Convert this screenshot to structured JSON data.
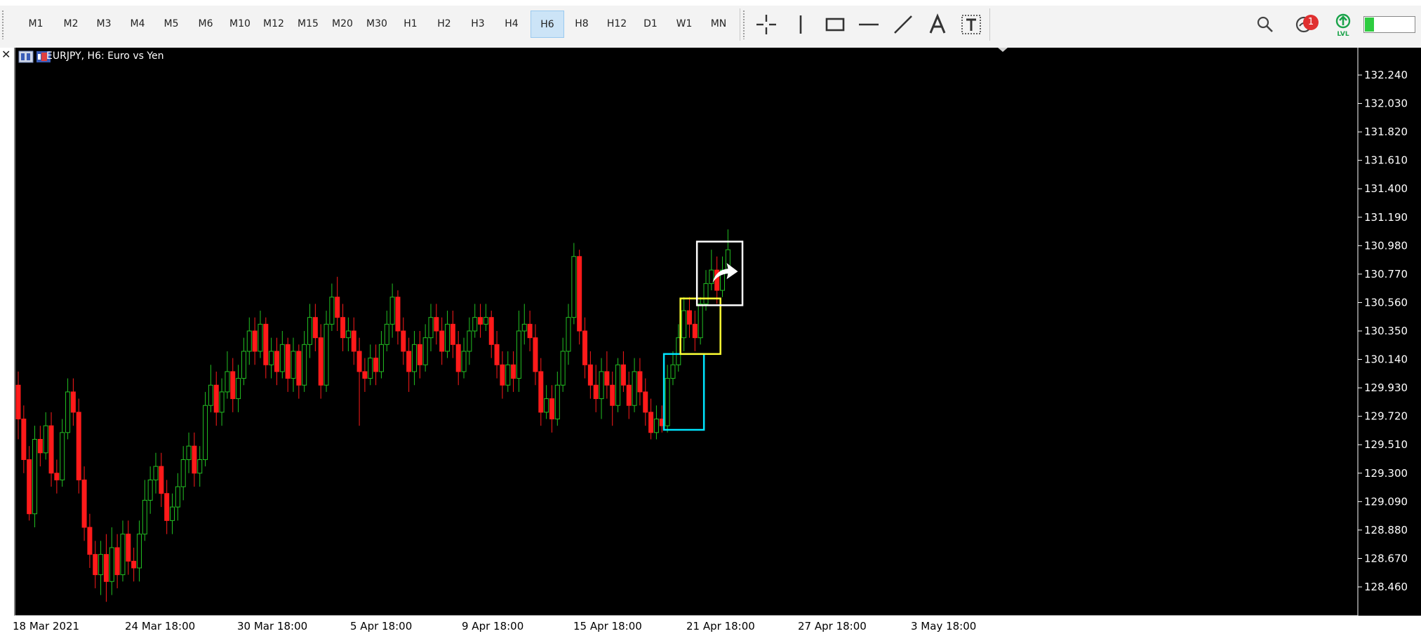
{
  "toolbar": {
    "timeframes": [
      {
        "label": "M1",
        "active": false
      },
      {
        "label": "M2",
        "active": false
      },
      {
        "label": "M3",
        "active": false
      },
      {
        "label": "M4",
        "active": false
      },
      {
        "label": "M5",
        "active": false
      },
      {
        "label": "M6",
        "active": false
      },
      {
        "label": "M10",
        "active": false
      },
      {
        "label": "M12",
        "active": false
      },
      {
        "label": "M15",
        "active": false
      },
      {
        "label": "M20",
        "active": false
      },
      {
        "label": "M30",
        "active": false
      },
      {
        "label": "H1",
        "active": false
      },
      {
        "label": "H2",
        "active": false
      },
      {
        "label": "H3",
        "active": false
      },
      {
        "label": "H4",
        "active": false
      },
      {
        "label": "H6",
        "active": true
      },
      {
        "label": "H8",
        "active": false
      },
      {
        "label": "H12",
        "active": false
      },
      {
        "label": "D1",
        "active": false
      },
      {
        "label": "W1",
        "active": false
      },
      {
        "label": "MN",
        "active": false
      }
    ],
    "tools": [
      "crosshair-icon",
      "vertical-line-icon",
      "rectangle-icon",
      "horizontal-line-icon",
      "trendline-icon",
      "text-icon",
      "text-label-icon"
    ],
    "notification_count": "1",
    "level_label": "LVL",
    "level_fraction": 0.18,
    "colors": {
      "active_bg": "#cce4f7",
      "badge": "#e03030",
      "level": "#2ecc40",
      "signal_green": "#1aa34a"
    }
  },
  "chart_data": {
    "type": "candlestick",
    "title": "EURJPY, H6:  Euro vs Yen",
    "ylim": [
      128.3,
      132.4
    ],
    "y_ticks": [
      "132.240",
      "132.030",
      "131.820",
      "131.610",
      "131.400",
      "131.190",
      "130.980",
      "130.770",
      "130.560",
      "130.350",
      "130.140",
      "129.930",
      "129.720",
      "129.510",
      "129.300",
      "129.090",
      "128.880",
      "128.670",
      "128.460"
    ],
    "x_labels": [
      "18 Mar 2021",
      "24 Mar 18:00",
      "30 Mar 18:00",
      "5 Apr 18:00",
      "9 Apr 18:00",
      "15 Apr 18:00",
      "21 Apr 18:00",
      "27 Apr 18:00",
      "3 May 18:00"
    ],
    "colors": {
      "up": "#22c022",
      "down": "#ff1a1a",
      "grid_text": "#ffffff",
      "boxes": [
        "#00e5ff",
        "#ffff33",
        "#ffffff"
      ]
    },
    "candles": [
      [
        129.95,
        129.7,
        130.05,
        129.55
      ],
      [
        129.7,
        129.4,
        129.8,
        129.3
      ],
      [
        129.4,
        129.0,
        129.5,
        128.95
      ],
      [
        129.0,
        129.55,
        129.65,
        128.9
      ],
      [
        129.55,
        129.45,
        129.65,
        129.35
      ],
      [
        129.45,
        129.65,
        129.75,
        129.4
      ],
      [
        129.65,
        129.3,
        129.75,
        129.2
      ],
      [
        129.3,
        129.25,
        129.4,
        129.15
      ],
      [
        129.25,
        129.6,
        129.7,
        129.2
      ],
      [
        129.6,
        129.9,
        130.0,
        129.55
      ],
      [
        129.9,
        129.75,
        130.0,
        129.65
      ],
      [
        129.75,
        129.25,
        129.85,
        129.15
      ],
      [
        129.25,
        128.9,
        129.35,
        128.8
      ],
      [
        128.9,
        128.7,
        129.0,
        128.6
      ],
      [
        128.7,
        128.55,
        128.8,
        128.45
      ],
      [
        128.55,
        128.7,
        128.8,
        128.4
      ],
      [
        128.7,
        128.5,
        128.85,
        128.35
      ],
      [
        128.5,
        128.75,
        128.9,
        128.4
      ],
      [
        128.75,
        128.55,
        128.85,
        128.45
      ],
      [
        128.55,
        128.85,
        128.95,
        128.5
      ],
      [
        128.85,
        128.65,
        128.95,
        128.55
      ],
      [
        128.65,
        128.6,
        128.75,
        128.5
      ],
      [
        128.6,
        128.85,
        128.95,
        128.5
      ],
      [
        128.85,
        129.1,
        129.25,
        128.8
      ],
      [
        129.1,
        129.25,
        129.35,
        129.0
      ],
      [
        129.25,
        129.35,
        129.45,
        129.15
      ],
      [
        129.35,
        129.15,
        129.45,
        129.05
      ],
      [
        129.15,
        128.95,
        129.25,
        128.85
      ],
      [
        128.95,
        129.05,
        129.15,
        128.85
      ],
      [
        129.05,
        129.2,
        129.3,
        128.95
      ],
      [
        129.2,
        129.4,
        129.5,
        129.1
      ],
      [
        129.4,
        129.5,
        129.6,
        129.3
      ],
      [
        129.5,
        129.3,
        129.6,
        129.2
      ],
      [
        129.3,
        129.4,
        129.5,
        129.2
      ],
      [
        129.4,
        129.8,
        129.9,
        129.35
      ],
      [
        129.8,
        129.95,
        130.1,
        129.75
      ],
      [
        129.95,
        129.75,
        130.05,
        129.65
      ],
      [
        129.75,
        129.9,
        130.0,
        129.65
      ],
      [
        129.9,
        130.05,
        130.2,
        129.85
      ],
      [
        130.05,
        129.85,
        130.15,
        129.75
      ],
      [
        129.85,
        130.0,
        130.1,
        129.75
      ],
      [
        130.0,
        130.2,
        130.3,
        129.95
      ],
      [
        130.2,
        130.35,
        130.45,
        130.1
      ],
      [
        130.35,
        130.2,
        130.45,
        130.1
      ],
      [
        130.2,
        130.4,
        130.5,
        130.15
      ],
      [
        130.4,
        130.1,
        130.45,
        130.0
      ],
      [
        130.1,
        130.2,
        130.3,
        130.0
      ],
      [
        130.2,
        130.05,
        130.3,
        129.95
      ],
      [
        130.05,
        130.25,
        130.35,
        130.0
      ],
      [
        130.25,
        130.0,
        130.3,
        129.9
      ],
      [
        130.0,
        130.2,
        130.3,
        129.9
      ],
      [
        130.2,
        129.95,
        130.25,
        129.85
      ],
      [
        129.95,
        130.25,
        130.35,
        129.9
      ],
      [
        130.25,
        130.45,
        130.55,
        130.15
      ],
      [
        130.45,
        130.3,
        130.55,
        130.2
      ],
      [
        130.3,
        129.95,
        130.4,
        129.85
      ],
      [
        129.95,
        130.4,
        130.5,
        129.9
      ],
      [
        130.4,
        130.6,
        130.7,
        130.35
      ],
      [
        130.6,
        130.45,
        130.75,
        130.35
      ],
      [
        130.45,
        130.3,
        130.55,
        130.2
      ],
      [
        130.3,
        130.35,
        130.45,
        130.2
      ],
      [
        130.35,
        130.2,
        130.45,
        130.1
      ],
      [
        130.2,
        130.05,
        130.3,
        129.65
      ],
      [
        130.05,
        130.0,
        130.15,
        129.9
      ],
      [
        130.0,
        130.15,
        130.25,
        129.95
      ],
      [
        130.15,
        130.05,
        130.25,
        129.95
      ],
      [
        130.05,
        130.25,
        130.35,
        130.0
      ],
      [
        130.25,
        130.4,
        130.5,
        130.2
      ],
      [
        130.4,
        130.6,
        130.7,
        130.3
      ],
      [
        130.6,
        130.35,
        130.65,
        130.25
      ],
      [
        130.35,
        130.2,
        130.45,
        130.1
      ],
      [
        130.2,
        130.05,
        130.3,
        129.9
      ],
      [
        130.05,
        130.25,
        130.35,
        129.95
      ],
      [
        130.25,
        130.1,
        130.35,
        130.0
      ],
      [
        130.1,
        130.3,
        130.4,
        130.05
      ],
      [
        130.3,
        130.45,
        130.55,
        130.2
      ],
      [
        130.45,
        130.35,
        130.55,
        130.25
      ],
      [
        130.35,
        130.2,
        130.45,
        130.1
      ],
      [
        130.2,
        130.4,
        130.5,
        130.15
      ],
      [
        130.4,
        130.25,
        130.5,
        130.15
      ],
      [
        130.25,
        130.05,
        130.35,
        129.95
      ],
      [
        130.05,
        130.2,
        130.3,
        130.0
      ],
      [
        130.2,
        130.35,
        130.45,
        130.1
      ],
      [
        130.35,
        130.45,
        130.55,
        130.3
      ],
      [
        130.45,
        130.4,
        130.55,
        130.3
      ],
      [
        130.4,
        130.45,
        130.55,
        130.35
      ],
      [
        130.45,
        130.25,
        130.5,
        130.15
      ],
      [
        130.25,
        130.1,
        130.35,
        130.0
      ],
      [
        130.1,
        129.95,
        130.2,
        129.85
      ],
      [
        129.95,
        130.1,
        130.2,
        129.9
      ],
      [
        130.1,
        130.0,
        130.2,
        129.9
      ],
      [
        130.0,
        130.35,
        130.5,
        129.9
      ],
      [
        130.35,
        130.4,
        130.55,
        130.25
      ],
      [
        130.4,
        130.3,
        130.5,
        130.2
      ],
      [
        130.3,
        130.05,
        130.4,
        129.95
      ],
      [
        130.05,
        129.75,
        130.15,
        129.65
      ],
      [
        129.75,
        129.85,
        129.95,
        129.7
      ],
      [
        129.85,
        129.7,
        129.95,
        129.6
      ],
      [
        129.7,
        129.95,
        130.05,
        129.65
      ],
      [
        129.95,
        130.2,
        130.3,
        129.9
      ],
      [
        130.2,
        130.45,
        130.55,
        130.1
      ],
      [
        130.45,
        130.9,
        131.0,
        130.4
      ],
      [
        130.9,
        130.35,
        130.95,
        130.25
      ],
      [
        130.35,
        130.1,
        130.45,
        130.0
      ],
      [
        130.1,
        129.95,
        130.2,
        129.85
      ],
      [
        129.95,
        129.85,
        130.1,
        129.75
      ],
      [
        129.85,
        130.05,
        130.15,
        129.7
      ],
      [
        130.05,
        129.95,
        130.2,
        129.85
      ],
      [
        129.95,
        129.8,
        130.05,
        129.65
      ],
      [
        129.8,
        130.1,
        130.15,
        129.75
      ],
      [
        130.1,
        129.95,
        130.2,
        129.9
      ],
      [
        129.95,
        129.8,
        130.05,
        129.7
      ],
      [
        129.8,
        130.05,
        130.15,
        129.75
      ],
      [
        130.05,
        129.9,
        130.15,
        129.8
      ],
      [
        129.9,
        129.75,
        130.0,
        129.65
      ],
      [
        129.75,
        129.6,
        129.85,
        129.55
      ],
      [
        129.6,
        129.7,
        129.8,
        129.55
      ],
      [
        129.7,
        129.65,
        129.8,
        129.6
      ],
      [
        129.65,
        130.0,
        130.1,
        129.6
      ],
      [
        130.0,
        130.1,
        130.2,
        129.95
      ],
      [
        130.1,
        130.3,
        130.4,
        130.05
      ],
      [
        130.3,
        130.5,
        130.6,
        130.2
      ],
      [
        130.5,
        130.4,
        130.6,
        130.3
      ],
      [
        130.4,
        130.3,
        130.5,
        130.2
      ],
      [
        130.3,
        130.55,
        130.6,
        130.25
      ],
      [
        130.55,
        130.7,
        130.8,
        130.5
      ],
      [
        130.7,
        130.8,
        130.95,
        130.65
      ],
      [
        130.8,
        130.65,
        130.9,
        130.55
      ],
      [
        130.65,
        130.8,
        130.9,
        130.6
      ],
      [
        130.8,
        130.95,
        131.1,
        130.75
      ]
    ],
    "boxes": [
      {
        "x0_index": 118,
        "x1_index": 124,
        "y_top": 130.18,
        "y_bottom": 129.62
      },
      {
        "x0_index": 121,
        "x1_index": 127,
        "y_top": 130.59,
        "y_bottom": 130.18
      },
      {
        "x0_index": 124,
        "x1_index": 131,
        "y_top": 131.01,
        "y_bottom": 130.54
      }
    ]
  }
}
